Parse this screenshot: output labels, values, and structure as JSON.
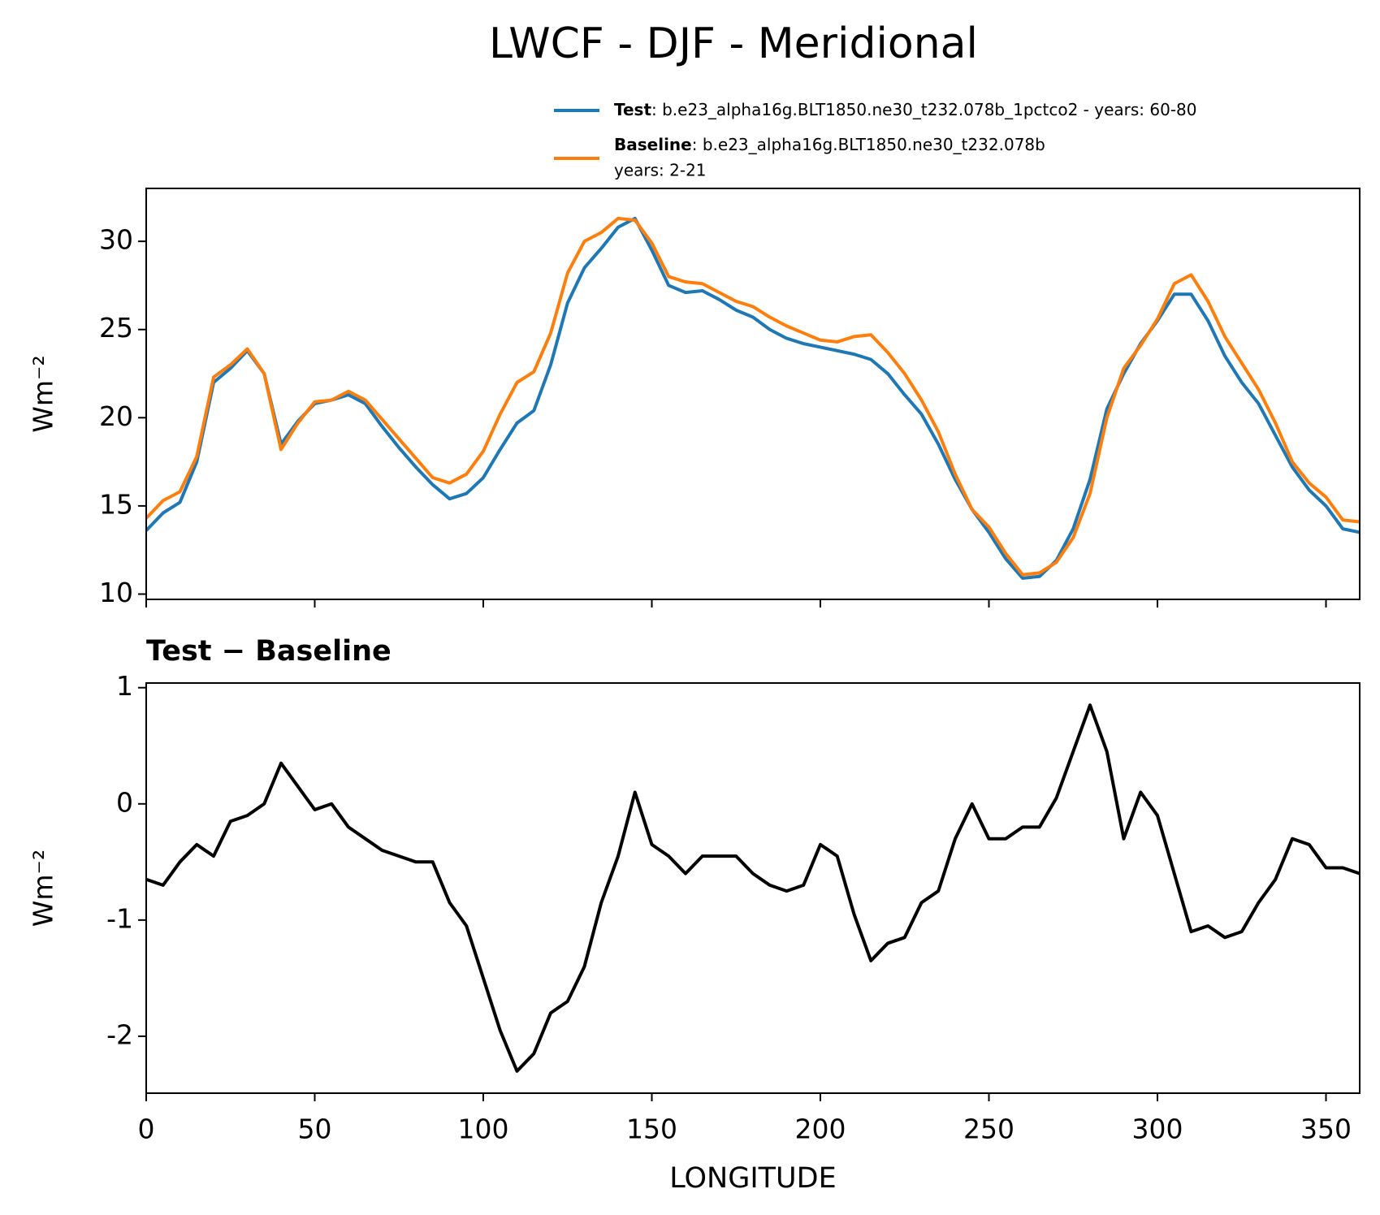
{
  "chart_data": [
    {
      "type": "line",
      "title": "LWCF - DJF - Meridional",
      "ylabel": "Wm⁻²",
      "x": [
        0,
        5,
        10,
        15,
        20,
        25,
        30,
        35,
        40,
        45,
        50,
        55,
        60,
        65,
        70,
        75,
        80,
        85,
        90,
        95,
        100,
        105,
        110,
        115,
        120,
        125,
        130,
        135,
        140,
        145,
        150,
        155,
        160,
        165,
        170,
        175,
        180,
        185,
        190,
        195,
        200,
        205,
        210,
        215,
        220,
        225,
        230,
        235,
        240,
        245,
        250,
        255,
        260,
        265,
        270,
        275,
        280,
        285,
        290,
        295,
        300,
        305,
        310,
        315,
        320,
        325,
        330,
        335,
        340,
        345,
        350,
        355,
        360
      ],
      "series": [
        {
          "name": "Test",
          "description": [
            ": b.e23_alpha16g.BLT1850.ne30_t232.078b_1pctco2 - years: 60-80"
          ],
          "color": "#1f77b4",
          "values": [
            13.6,
            14.6,
            15.2,
            17.5,
            22.0,
            22.8,
            23.8,
            22.5,
            18.5,
            19.8,
            20.8,
            21.0,
            21.3,
            20.8,
            19.5,
            18.3,
            17.2,
            16.2,
            15.4,
            15.7,
            16.6,
            18.2,
            19.7,
            20.4,
            23.0,
            26.5,
            28.5,
            29.6,
            30.8,
            31.3,
            29.5,
            27.5,
            27.1,
            27.2,
            26.7,
            26.1,
            25.7,
            25.0,
            24.5,
            24.2,
            24.0,
            23.8,
            23.6,
            23.3,
            22.5,
            21.3,
            20.2,
            18.5,
            16.5,
            14.8,
            13.5,
            12.0,
            10.9,
            11.0,
            11.9,
            13.7,
            16.5,
            20.5,
            22.5,
            24.2,
            25.5,
            27.0,
            27.0,
            25.5,
            23.5,
            22.0,
            20.8,
            19.0,
            17.2,
            15.9,
            15.0,
            13.7,
            13.5
          ]
        },
        {
          "name": "Baseline",
          "description": [
            ": b.e23_alpha16g.BLT1850.ne30_t232.078b",
            "years: 2-21"
          ],
          "color": "#ff7f0e",
          "values": [
            14.3,
            15.3,
            15.8,
            17.8,
            22.3,
            23.0,
            23.9,
            22.5,
            18.2,
            19.7,
            20.9,
            21.0,
            21.5,
            21.0,
            19.9,
            18.8,
            17.7,
            16.6,
            16.3,
            16.8,
            18.1,
            20.2,
            22.0,
            22.6,
            24.8,
            28.2,
            30.0,
            30.5,
            31.3,
            31.2,
            29.9,
            28.0,
            27.7,
            27.6,
            27.1,
            26.6,
            26.3,
            25.7,
            25.2,
            24.8,
            24.4,
            24.3,
            24.6,
            24.7,
            23.7,
            22.5,
            21.0,
            19.2,
            16.8,
            14.8,
            13.8,
            12.3,
            11.1,
            11.2,
            11.8,
            13.2,
            15.7,
            20.0,
            22.8,
            24.1,
            25.6,
            27.6,
            28.1,
            26.6,
            24.6,
            23.1,
            21.6,
            19.7,
            17.5,
            16.3,
            15.5,
            14.2,
            14.1
          ]
        }
      ],
      "xlim": [
        0,
        360
      ],
      "xticks": [
        0,
        50,
        100,
        150,
        200,
        250,
        300,
        350
      ],
      "ylim": [
        9.7,
        33
      ],
      "yticks": [
        10,
        15,
        20,
        25,
        30
      ]
    },
    {
      "type": "line",
      "title": "Test − Baseline",
      "ylabel": "Wm⁻²",
      "xlabel": "LONGITUDE",
      "x": [
        0,
        5,
        10,
        15,
        20,
        25,
        30,
        35,
        40,
        45,
        50,
        55,
        60,
        65,
        70,
        75,
        80,
        85,
        90,
        95,
        100,
        105,
        110,
        115,
        120,
        125,
        130,
        135,
        140,
        145,
        150,
        155,
        160,
        165,
        170,
        175,
        180,
        185,
        190,
        195,
        200,
        205,
        210,
        215,
        220,
        225,
        230,
        235,
        240,
        245,
        250,
        255,
        260,
        265,
        270,
        275,
        280,
        285,
        290,
        295,
        300,
        305,
        310,
        315,
        320,
        325,
        330,
        335,
        340,
        345,
        350,
        355,
        360
      ],
      "color": "#000000",
      "values": [
        -0.65,
        -0.7,
        -0.5,
        -0.35,
        -0.45,
        -0.15,
        -0.1,
        0.0,
        0.35,
        0.15,
        -0.05,
        0.0,
        -0.2,
        -0.3,
        -0.4,
        -0.45,
        -0.5,
        -0.5,
        -0.85,
        -1.05,
        -1.5,
        -1.95,
        -2.3,
        -2.15,
        -1.8,
        -1.7,
        -1.4,
        -0.85,
        -0.45,
        0.1,
        -0.35,
        -0.45,
        -0.6,
        -0.45,
        -0.45,
        -0.45,
        -0.6,
        -0.7,
        -0.75,
        -0.7,
        -0.35,
        -0.45,
        -0.95,
        -1.35,
        -1.2,
        -1.15,
        -0.85,
        -0.75,
        -0.3,
        0.0,
        -0.3,
        -0.3,
        -0.2,
        -0.2,
        0.05,
        0.45,
        0.85,
        0.45,
        -0.3,
        0.1,
        -0.1,
        -0.6,
        -1.1,
        -1.05,
        -1.15,
        -1.1,
        -0.85,
        -0.65,
        -0.3,
        -0.35,
        -0.55,
        -0.55,
        -0.6
      ],
      "xlim": [
        0,
        360
      ],
      "xticks": [
        0,
        50,
        100,
        150,
        200,
        250,
        300,
        350
      ],
      "ylim": [
        -2.49,
        1.04
      ],
      "yticks": [
        -2,
        -1,
        0,
        1
      ]
    }
  ]
}
